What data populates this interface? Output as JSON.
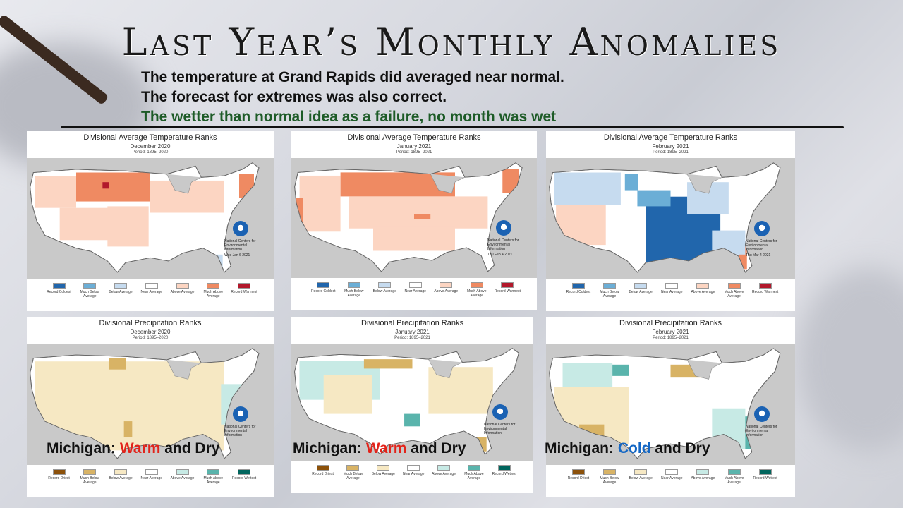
{
  "slide": {
    "title": "Last Year’s Monthly Anomalies",
    "line1": "The temperature at Grand Rapids did averaged near normal.",
    "line2": "The forecast for extremes was also correct.",
    "line3": "The wetter than normal idea as a failure, no month was wet"
  },
  "noaa": {
    "ncei_text": "National Centers for Environmental Information"
  },
  "temp_legend": [
    "Record Coldest",
    "Much Below Average",
    "Below Average",
    "Near Average",
    "Above Average",
    "Much Above Average",
    "Record Warmest"
  ],
  "temp_colors": [
    "#2166ac",
    "#6baed6",
    "#c6dbef",
    "#ffffff",
    "#fcd5c2",
    "#ef8a62",
    "#b2182b"
  ],
  "precip_legend": [
    "Record Driest",
    "Much Below Average",
    "Below Average",
    "Near Average",
    "Above Average",
    "Much Above Average",
    "Record Wettest"
  ],
  "precip_colors": [
    "#8c510a",
    "#d8b365",
    "#f6e8c3",
    "#ffffff",
    "#c7eae5",
    "#5ab4ac",
    "#01665e"
  ],
  "panels": [
    {
      "title": "Divisional Average Temperature Ranks",
      "month": "December 2020",
      "period": "Period: 1895–2020",
      "stamp": "Wed Jan 6 2021",
      "kind": "temp",
      "michigan_label": "",
      "michigan_word": "",
      "michigan_rest": ""
    },
    {
      "title": "Divisional Average Temperature Ranks",
      "month": "January 2021",
      "period": "Period: 1895–2021",
      "stamp": "Thu Feb 4 2021",
      "kind": "temp",
      "michigan_label": "",
      "michigan_word": "",
      "michigan_rest": ""
    },
    {
      "title": "Divisional Average Temperature Ranks",
      "month": "February 2021",
      "period": "Period: 1895–2021",
      "stamp": "Thu Mar 4 2021",
      "kind": "temp",
      "michigan_label": "",
      "michigan_word": "",
      "michigan_rest": ""
    },
    {
      "title": "Divisional Precipitation Ranks",
      "month": "December 2020",
      "period": "Period: 1895–2020",
      "stamp": "",
      "kind": "precip",
      "michigan_label": "Michigan: ",
      "michigan_word": "Warm",
      "michigan_rest": " and Dry"
    },
    {
      "title": "Divisional Precipitation Ranks",
      "month": "January 2021",
      "period": "Period: 1895–2021",
      "stamp": "",
      "kind": "precip",
      "michigan_label": "Michigan: ",
      "michigan_word": "Warm",
      "michigan_rest": " and Dry"
    },
    {
      "title": "Divisional Precipitation Ranks",
      "month": "February 2021",
      "period": "Period: 1895–2021",
      "stamp": "",
      "kind": "precip",
      "michigan_label": "Michigan: ",
      "michigan_word": "Cold",
      "michigan_rest": " and Dry"
    }
  ]
}
